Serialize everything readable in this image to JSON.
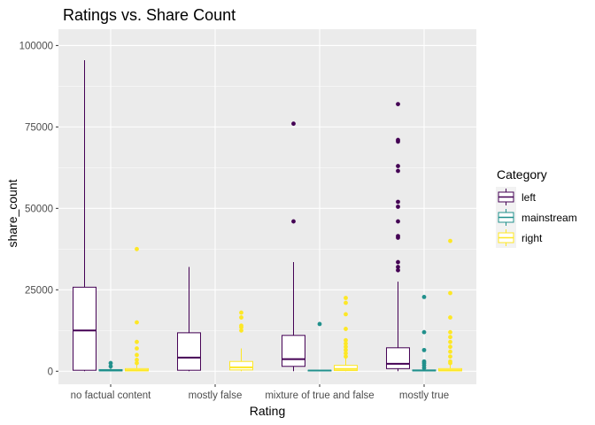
{
  "chart_data": {
    "type": "boxplot",
    "title": "Ratings vs. Share Count",
    "xlabel": "Rating",
    "ylabel": "share_count",
    "categories": [
      "no factual content",
      "mostly false",
      "mixture of true and false",
      "mostly true"
    ],
    "ylim": [
      -4000,
      105000
    ],
    "yticks": [
      0,
      25000,
      50000,
      75000,
      100000
    ],
    "ytick_labels": [
      "0",
      "25000",
      "50000",
      "75000",
      "100000"
    ],
    "legend": {
      "title": "Category",
      "position": "right",
      "entries": [
        {
          "name": "left",
          "color": "#440154"
        },
        {
          "name": "mainstream",
          "color": "#21908C"
        },
        {
          "name": "right",
          "color": "#FDE725"
        }
      ]
    },
    "series": [
      {
        "name": "left",
        "color": "#440154",
        "boxes": [
          {
            "category": "no factual content",
            "min": 0,
            "q1": 300,
            "median": 12500,
            "q3": 25800,
            "max": 95500,
            "outliers": []
          },
          {
            "category": "mostly false",
            "min": 0,
            "q1": 300,
            "median": 4200,
            "q3": 11800,
            "max": 32000,
            "outliers": []
          },
          {
            "category": "mixture of true and false",
            "min": 0,
            "q1": 1500,
            "median": 3700,
            "q3": 11000,
            "max": 33500,
            "outliers": [
              46000,
              76000
            ]
          },
          {
            "category": "mostly true",
            "min": 0,
            "q1": 800,
            "median": 2300,
            "q3": 7200,
            "max": 27500,
            "outliers": [
              31000,
              32000,
              33500,
              41000,
              41500,
              46000,
              50500,
              52000,
              61500,
              63000,
              70500,
              71000,
              82000
            ]
          }
        ]
      },
      {
        "name": "mainstream",
        "color": "#21908C",
        "boxes": [
          {
            "category": "no factual content",
            "min": 0,
            "q1": 100,
            "median": 250,
            "q3": 500,
            "max": 1000,
            "outliers": [
              1500,
              2500
            ]
          },
          {
            "category": "mostly false",
            "min": null,
            "q1": null,
            "median": null,
            "q3": null,
            "max": null,
            "outliers": []
          },
          {
            "category": "mixture of true and false",
            "min": 0,
            "q1": 100,
            "median": 200,
            "q3": 300,
            "max": 500,
            "outliers": [
              14500
            ]
          },
          {
            "category": "mostly true",
            "min": 0,
            "q1": 100,
            "median": 200,
            "q3": 400,
            "max": 700,
            "outliers": [
              1000,
              1800,
              2500,
              3000,
              6500,
              12000,
              22800
            ]
          }
        ]
      },
      {
        "name": "right",
        "color": "#FDE725",
        "boxes": [
          {
            "category": "no factual content",
            "min": 0,
            "q1": 100,
            "median": 300,
            "q3": 800,
            "max": 2000,
            "outliers": [
              2500,
              3500,
              5000,
              7000,
              9000,
              15000,
              37500
            ]
          },
          {
            "category": "mostly false",
            "min": 0,
            "q1": 400,
            "median": 1200,
            "q3": 3000,
            "max": 7000,
            "outliers": [
              12500,
              13500,
              14000,
              16500,
              18000
            ]
          },
          {
            "category": "mixture of true and false",
            "min": 0,
            "q1": 200,
            "median": 700,
            "q3": 1800,
            "max": 4000,
            "outliers": [
              4500,
              5500,
              6500,
              7500,
              8500,
              9500,
              13000,
              17500,
              21000,
              22500
            ]
          },
          {
            "category": "mostly true",
            "min": 0,
            "q1": 100,
            "median": 300,
            "q3": 800,
            "max": 2000,
            "outliers": [
              2500,
              3000,
              4500,
              6000,
              7500,
              9000,
              10500,
              12000,
              16500,
              24000,
              40000
            ]
          }
        ]
      }
    ]
  }
}
